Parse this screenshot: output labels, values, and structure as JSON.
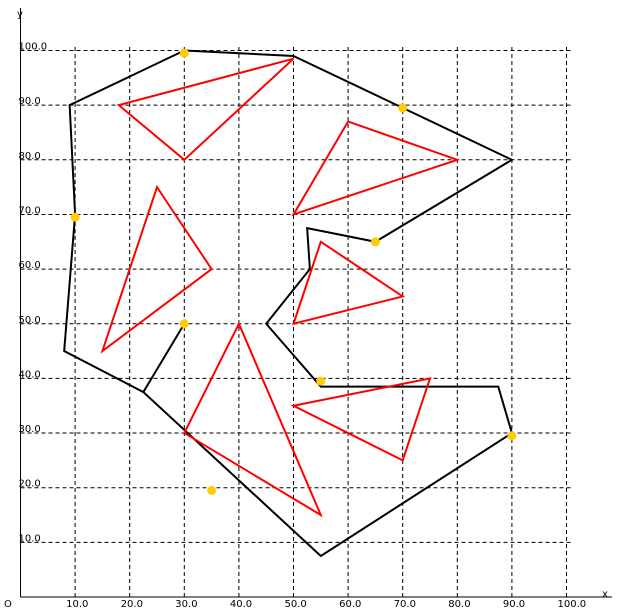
{
  "chart_data": {
    "type": "scatter",
    "xlabel": "x",
    "ylabel": "y",
    "origin_label": "O",
    "xlim": [
      0,
      100
    ],
    "ylim": [
      0,
      100
    ],
    "grid": true,
    "x_ticks": [
      10.0,
      20.0,
      30.0,
      40.0,
      50.0,
      60.0,
      70.0,
      80.0,
      90.0,
      100.0
    ],
    "y_ticks": [
      10.0,
      20.0,
      30.0,
      40.0,
      50.0,
      60.0,
      70.0,
      80.0,
      90.0,
      100.0
    ],
    "x_tick_labels": [
      "10.0",
      "20.0",
      "30.0",
      "40.0",
      "50.0",
      "60.0",
      "70.0",
      "80.0",
      "90.0",
      "100.0"
    ],
    "y_tick_labels": [
      "10.0",
      "20.0",
      "30.0",
      "40.0",
      "50.0",
      "60.0",
      "70.0",
      "80.0",
      "90.0",
      "100.0"
    ],
    "colors": {
      "boundary": "#000000",
      "triangles": "#ff0000",
      "points": "#ffcc00",
      "grid": "#000000"
    },
    "boundary": [
      [
        30,
        100
      ],
      [
        50,
        99
      ],
      [
        90,
        80
      ],
      [
        65,
        65
      ],
      [
        52.5,
        67.5
      ],
      [
        53,
        60
      ],
      [
        45,
        50
      ],
      [
        55,
        38.5
      ],
      [
        87.5,
        38.5
      ],
      [
        90,
        30
      ],
      [
        55,
        7.5
      ],
      [
        22.5,
        37.5
      ],
      [
        8,
        45
      ],
      [
        10,
        70
      ],
      [
        9,
        90
      ]
    ],
    "segments": [
      [
        [
          22.5,
          37.5
        ],
        [
          30,
          50
        ]
      ]
    ],
    "triangles": [
      [
        [
          18,
          90
        ],
        [
          50,
          98.5
        ],
        [
          30,
          80
        ]
      ],
      [
        [
          60,
          87
        ],
        [
          80,
          80
        ],
        [
          50,
          70
        ]
      ],
      [
        [
          25,
          75
        ],
        [
          35,
          60
        ],
        [
          15,
          45
        ]
      ],
      [
        [
          55,
          65
        ],
        [
          70,
          55
        ],
        [
          50,
          50
        ]
      ],
      [
        [
          40,
          50
        ],
        [
          55,
          15
        ],
        [
          30,
          30
        ]
      ],
      [
        [
          50,
          35
        ],
        [
          75,
          40
        ],
        [
          70,
          25
        ]
      ]
    ],
    "points": [
      [
        30,
        99.5
      ],
      [
        70,
        89.5
      ],
      [
        10,
        69.5
      ],
      [
        65,
        65
      ],
      [
        30,
        50
      ],
      [
        55,
        39.5
      ],
      [
        90,
        29.5
      ],
      [
        35,
        19.5
      ]
    ]
  }
}
